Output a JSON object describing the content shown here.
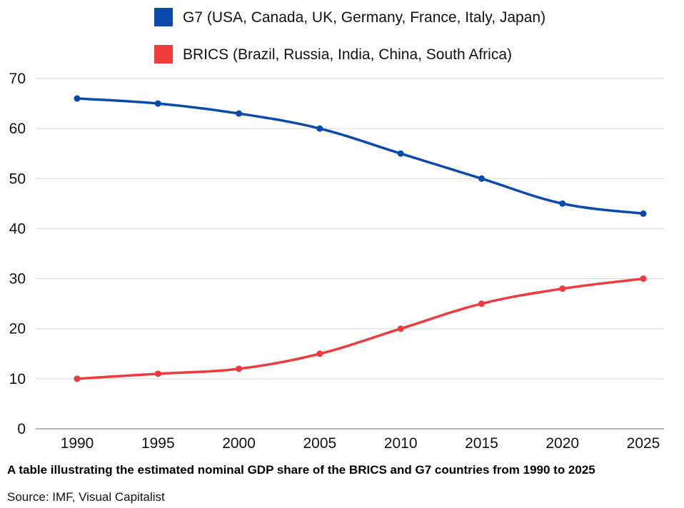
{
  "chart_data": {
    "type": "line",
    "title": "",
    "xlabel": "",
    "ylabel": "",
    "x": [
      "1990",
      "1995",
      "2000",
      "2005",
      "2010",
      "2015",
      "2020",
      "2025"
    ],
    "ylim": [
      0,
      70
    ],
    "yticks": [
      0,
      10,
      20,
      30,
      40,
      50,
      60,
      70
    ],
    "grid": "horizontal",
    "legend_position": "top-center",
    "series": [
      {
        "name": "G7 (USA, Canada, UK, Germany, France, Italy, Japan)",
        "color": "#0b4aad",
        "values": [
          66,
          65,
          63,
          60,
          55,
          50,
          45,
          43
        ]
      },
      {
        "name": "BRICS (Brazil, Russia, India, China, South Africa)",
        "color": "#ef3b3b",
        "values": [
          10,
          11,
          12,
          15,
          20,
          25,
          28,
          30
        ]
      }
    ],
    "caption": "A table illustrating the estimated nominal GDP share of the BRICS and G7 countries from 1990 to 2025",
    "source": "Source: IMF, Visual Capitalist"
  }
}
